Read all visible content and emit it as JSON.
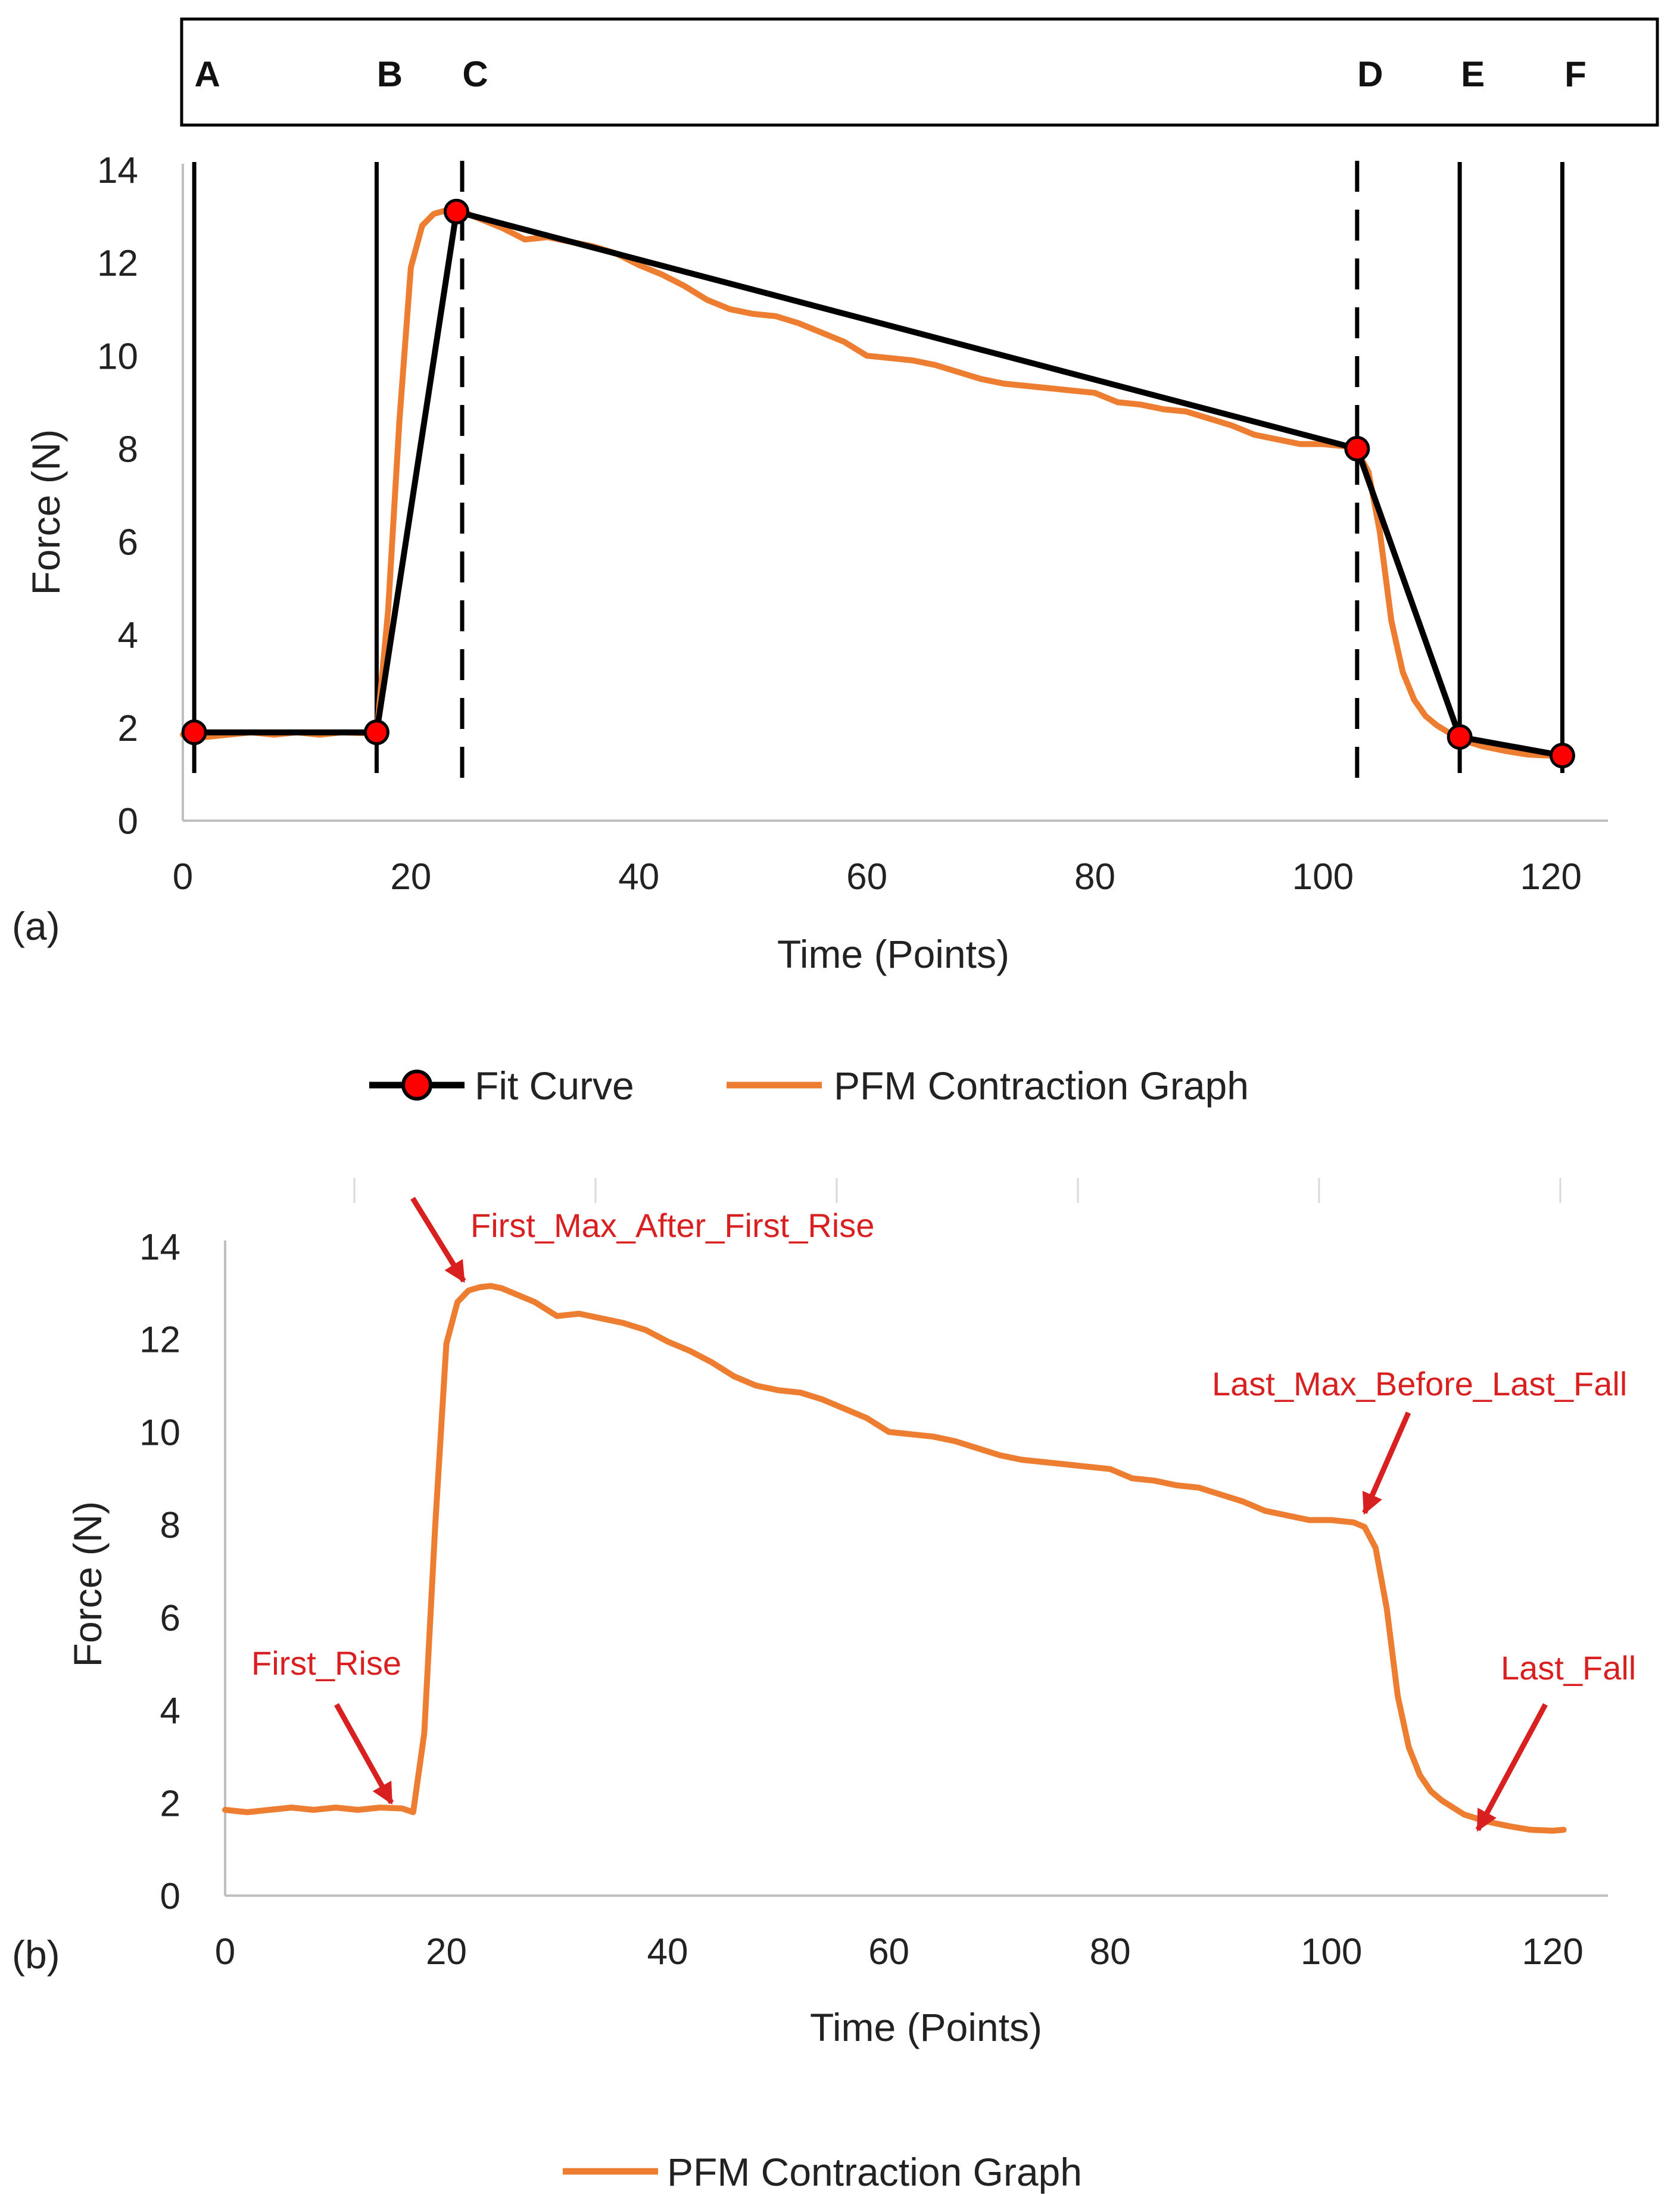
{
  "colors": {
    "fit": "#000000",
    "pfm": "#ED7D31",
    "marker": "#FF0000",
    "annotation": "#D92020",
    "axis": "#BFBFBF"
  },
  "chart_data": [
    {
      "id": "a",
      "type": "line",
      "panel_label": "(a)",
      "xlabel": "Time (Points)",
      "ylabel": "Force (N)",
      "xlim": [
        0,
        125
      ],
      "ylim": [
        0,
        14
      ],
      "xticks": [
        0,
        20,
        40,
        60,
        80,
        100,
        120
      ],
      "yticks": [
        0,
        2,
        4,
        6,
        8,
        10,
        12,
        14
      ],
      "legend": [
        "Fit Curve",
        "PFM Contraction Graph"
      ],
      "phase_markers": [
        {
          "label": "A",
          "x": 1,
          "style": "solid"
        },
        {
          "label": "B",
          "x": 17,
          "style": "solid"
        },
        {
          "label": "C",
          "x": 24.5,
          "style": "dashed"
        },
        {
          "label": "D",
          "x": 103,
          "style": "dashed"
        },
        {
          "label": "E",
          "x": 112,
          "style": "solid"
        },
        {
          "label": "F",
          "x": 121,
          "style": "solid"
        }
      ],
      "fit_curve": {
        "name": "Fit Curve",
        "x": [
          1,
          17,
          24,
          103,
          112,
          121
        ],
        "y": [
          1.9,
          1.9,
          13.1,
          8.0,
          1.8,
          1.4
        ]
      },
      "series": [
        {
          "name": "PFM Contraction Graph",
          "x": [
            0,
            2,
            4,
            6,
            8,
            10,
            12,
            14,
            16,
            17,
            18,
            19,
            20,
            21,
            22,
            23,
            24,
            25,
            26,
            28,
            30,
            32,
            34,
            36,
            38,
            40,
            42,
            44,
            46,
            48,
            50,
            52,
            54,
            56,
            58,
            60,
            62,
            64,
            66,
            68,
            70,
            72,
            74,
            76,
            78,
            80,
            82,
            84,
            86,
            88,
            90,
            92,
            94,
            96,
            98,
            100,
            102,
            103,
            104,
            105,
            106,
            107,
            108,
            109,
            110,
            112,
            114,
            116,
            118,
            120,
            121
          ],
          "y": [
            1.85,
            1.8,
            1.85,
            1.9,
            1.85,
            1.9,
            1.85,
            1.9,
            1.88,
            1.85,
            4.5,
            8.6,
            11.9,
            12.8,
            13.05,
            13.12,
            13.1,
            13.05,
            12.95,
            12.75,
            12.5,
            12.55,
            12.45,
            12.35,
            12.2,
            11.95,
            11.75,
            11.5,
            11.2,
            11.0,
            10.9,
            10.85,
            10.7,
            10.5,
            10.3,
            10.0,
            9.95,
            9.9,
            9.8,
            9.65,
            9.5,
            9.4,
            9.35,
            9.3,
            9.25,
            9.2,
            9.0,
            8.95,
            8.85,
            8.8,
            8.65,
            8.5,
            8.3,
            8.2,
            8.1,
            8.1,
            8.05,
            7.95,
            7.5,
            6.2,
            4.3,
            3.2,
            2.6,
            2.25,
            2.05,
            1.75,
            1.6,
            1.5,
            1.42,
            1.4,
            1.42
          ]
        }
      ]
    },
    {
      "id": "b",
      "type": "line",
      "panel_label": "(b)",
      "xlabel": "Time (Points)",
      "ylabel": "Force (N)",
      "xlim": [
        0,
        125
      ],
      "ylim": [
        0,
        14
      ],
      "xticks": [
        0,
        20,
        40,
        60,
        80,
        100,
        120
      ],
      "yticks": [
        0,
        2,
        4,
        6,
        8,
        10,
        12,
        14
      ],
      "legend": [
        "PFM Contraction Graph"
      ],
      "series": [
        {
          "name": "PFM Contraction Graph",
          "x": [
            0,
            2,
            4,
            6,
            8,
            10,
            12,
            14,
            16,
            17,
            18,
            19,
            20,
            21,
            22,
            23,
            24,
            25,
            26,
            28,
            30,
            32,
            34,
            36,
            38,
            40,
            42,
            44,
            46,
            48,
            50,
            52,
            54,
            56,
            58,
            60,
            62,
            64,
            66,
            68,
            70,
            72,
            74,
            76,
            78,
            80,
            82,
            84,
            86,
            88,
            90,
            92,
            94,
            96,
            98,
            100,
            102,
            103,
            104,
            105,
            106,
            107,
            108,
            109,
            110,
            112,
            114,
            116,
            118,
            120,
            121
          ],
          "y": [
            1.85,
            1.8,
            1.85,
            1.9,
            1.85,
            1.9,
            1.85,
            1.9,
            1.88,
            1.8,
            3.5,
            8.0,
            11.9,
            12.8,
            13.05,
            13.12,
            13.15,
            13.1,
            13.0,
            12.8,
            12.5,
            12.55,
            12.45,
            12.35,
            12.2,
            11.95,
            11.75,
            11.5,
            11.2,
            11.0,
            10.9,
            10.85,
            10.7,
            10.5,
            10.3,
            10.0,
            9.95,
            9.9,
            9.8,
            9.65,
            9.5,
            9.4,
            9.35,
            9.3,
            9.25,
            9.2,
            9.0,
            8.95,
            8.85,
            8.8,
            8.65,
            8.5,
            8.3,
            8.2,
            8.1,
            8.1,
            8.05,
            7.95,
            7.5,
            6.2,
            4.3,
            3.2,
            2.6,
            2.25,
            2.05,
            1.75,
            1.6,
            1.5,
            1.42,
            1.4,
            1.42
          ]
        }
      ],
      "annotations": [
        {
          "text": "First_Max_After_First_Rise",
          "target": [
            22,
            13.1
          ]
        },
        {
          "text": "Last_Max_Before_Last_Fall",
          "target": [
            103,
            8.0
          ]
        },
        {
          "text": "First_Rise",
          "target": [
            16,
            1.9
          ]
        },
        {
          "text": "Last_Fall",
          "target": [
            114,
            1.6
          ]
        }
      ]
    }
  ]
}
